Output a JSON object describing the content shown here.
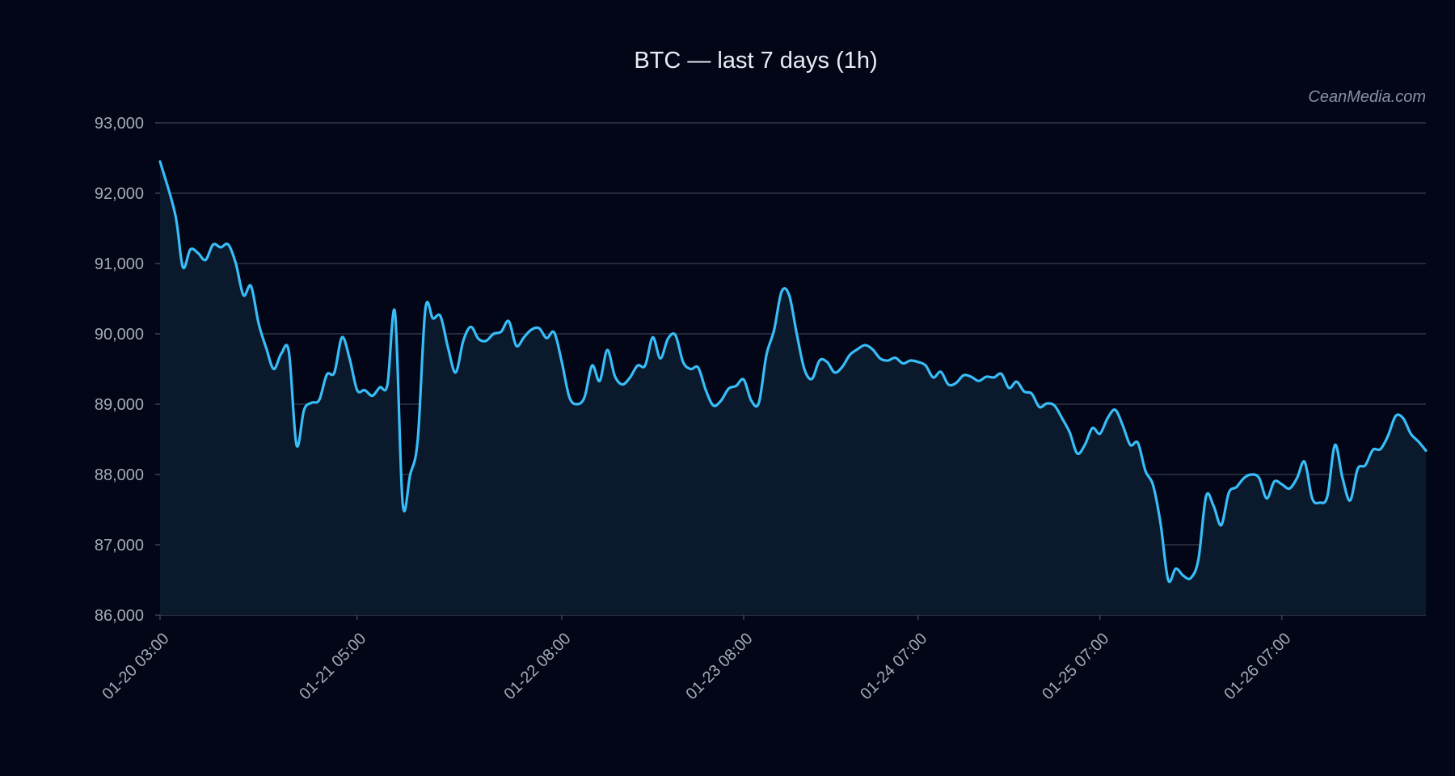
{
  "chart_data": {
    "type": "line",
    "title": "BTC — last 7 days (1h)",
    "watermark": "CeanMedia.com",
    "xlabel": "",
    "ylabel": "",
    "ylim": [
      86000,
      93000
    ],
    "y_ticks": [
      86000,
      87000,
      88000,
      89000,
      90000,
      91000,
      92000,
      93000
    ],
    "y_tick_labels": [
      "86,000",
      "87,000",
      "88,000",
      "89,000",
      "90,000",
      "91,000",
      "92,000",
      "93,000"
    ],
    "x_ticks": [
      {
        "hour": 0,
        "label": "01-20 03:00"
      },
      {
        "hour": 26,
        "label": "01-21 05:00"
      },
      {
        "hour": 53,
        "label": "01-22 08:00"
      },
      {
        "hour": 77,
        "label": "01-23 08:00"
      },
      {
        "hour": 100,
        "label": "01-24 07:00"
      },
      {
        "hour": 124,
        "label": "01-25 07:00"
      },
      {
        "hour": 148,
        "label": "01-26 07:00"
      }
    ],
    "x_unit": "hours since 01-20 03:00",
    "grid": true,
    "legend": "none",
    "colors": {
      "line": "#38bdf8",
      "area": "#0a1a2c",
      "background": "#020617",
      "grid": "#2f3745"
    },
    "series": [
      {
        "points": [
          [
            0,
            92450
          ],
          [
            2,
            91700
          ],
          [
            3,
            90950
          ],
          [
            4,
            91200
          ],
          [
            5,
            91150
          ],
          [
            6,
            91050
          ],
          [
            7,
            91270
          ],
          [
            8,
            91230
          ],
          [
            9,
            91270
          ],
          [
            10,
            91000
          ],
          [
            11,
            90550
          ],
          [
            12,
            90680
          ],
          [
            13,
            90150
          ],
          [
            14,
            89800
          ],
          [
            15,
            89500
          ],
          [
            16,
            89720
          ],
          [
            17,
            89740
          ],
          [
            18,
            88420
          ],
          [
            19,
            88920
          ],
          [
            20,
            89020
          ],
          [
            21,
            89060
          ],
          [
            22,
            89420
          ],
          [
            23,
            89450
          ],
          [
            24,
            89950
          ],
          [
            25,
            89650
          ],
          [
            26,
            89200
          ],
          [
            27,
            89200
          ],
          [
            28,
            89120
          ],
          [
            29,
            89240
          ],
          [
            30,
            89280
          ],
          [
            31,
            90300
          ],
          [
            32,
            87600
          ],
          [
            33,
            88000
          ],
          [
            34,
            88500
          ],
          [
            35,
            90350
          ],
          [
            36,
            90220
          ],
          [
            37,
            90250
          ],
          [
            38,
            89800
          ],
          [
            39,
            89450
          ],
          [
            40,
            89900
          ],
          [
            41,
            90100
          ],
          [
            42,
            89930
          ],
          [
            43,
            89900
          ],
          [
            44,
            90000
          ],
          [
            45,
            90030
          ],
          [
            46,
            90180
          ],
          [
            47,
            89830
          ],
          [
            48,
            89950
          ],
          [
            49,
            90060
          ],
          [
            50,
            90080
          ],
          [
            51,
            89940
          ],
          [
            52,
            90020
          ],
          [
            53,
            89600
          ],
          [
            54,
            89100
          ],
          [
            55,
            89000
          ],
          [
            56,
            89100
          ],
          [
            57,
            89550
          ],
          [
            58,
            89330
          ],
          [
            59,
            89770
          ],
          [
            60,
            89400
          ],
          [
            61,
            89280
          ],
          [
            62,
            89380
          ],
          [
            63,
            89550
          ],
          [
            64,
            89550
          ],
          [
            65,
            89950
          ],
          [
            66,
            89650
          ],
          [
            67,
            89930
          ],
          [
            68,
            89980
          ],
          [
            69,
            89600
          ],
          [
            70,
            89500
          ],
          [
            71,
            89520
          ],
          [
            72,
            89200
          ],
          [
            73,
            88980
          ],
          [
            74,
            89050
          ],
          [
            75,
            89220
          ],
          [
            76,
            89260
          ],
          [
            77,
            89350
          ],
          [
            78,
            89050
          ],
          [
            79,
            89020
          ],
          [
            80,
            89700
          ],
          [
            81,
            90050
          ],
          [
            82,
            90600
          ],
          [
            83,
            90550
          ],
          [
            84,
            90000
          ],
          [
            85,
            89500
          ],
          [
            86,
            89360
          ],
          [
            87,
            89620
          ],
          [
            88,
            89600
          ],
          [
            89,
            89450
          ],
          [
            90,
            89530
          ],
          [
            91,
            89700
          ],
          [
            92,
            89780
          ],
          [
            93,
            89840
          ],
          [
            94,
            89780
          ],
          [
            95,
            89650
          ],
          [
            96,
            89620
          ],
          [
            97,
            89660
          ],
          [
            98,
            89580
          ],
          [
            99,
            89620
          ],
          [
            100,
            89600
          ],
          [
            101,
            89550
          ],
          [
            102,
            89380
          ],
          [
            103,
            89460
          ],
          [
            104,
            89280
          ],
          [
            105,
            89300
          ],
          [
            106,
            89410
          ],
          [
            107,
            89390
          ],
          [
            108,
            89330
          ],
          [
            109,
            89390
          ],
          [
            110,
            89380
          ],
          [
            111,
            89430
          ],
          [
            112,
            89230
          ],
          [
            113,
            89320
          ],
          [
            114,
            89180
          ],
          [
            115,
            89150
          ],
          [
            116,
            88960
          ],
          [
            117,
            89010
          ],
          [
            118,
            88980
          ],
          [
            119,
            88800
          ],
          [
            120,
            88600
          ],
          [
            121,
            88300
          ],
          [
            122,
            88420
          ],
          [
            123,
            88660
          ],
          [
            124,
            88580
          ],
          [
            125,
            88800
          ],
          [
            126,
            88920
          ],
          [
            127,
            88700
          ],
          [
            128,
            88420
          ],
          [
            129,
            88450
          ],
          [
            130,
            88050
          ],
          [
            131,
            87850
          ],
          [
            132,
            87300
          ],
          [
            133,
            86500
          ],
          [
            134,
            86660
          ],
          [
            135,
            86560
          ],
          [
            136,
            86530
          ],
          [
            137,
            86800
          ],
          [
            138,
            87690
          ],
          [
            139,
            87550
          ],
          [
            140,
            87280
          ],
          [
            141,
            87740
          ],
          [
            142,
            87820
          ],
          [
            143,
            87950
          ],
          [
            144,
            88000
          ],
          [
            145,
            87950
          ],
          [
            146,
            87660
          ],
          [
            147,
            87900
          ],
          [
            148,
            87860
          ],
          [
            149,
            87800
          ],
          [
            150,
            87950
          ],
          [
            151,
            88180
          ],
          [
            152,
            87660
          ],
          [
            153,
            87600
          ],
          [
            154,
            87690
          ],
          [
            155,
            88420
          ],
          [
            156,
            87950
          ],
          [
            157,
            87630
          ],
          [
            158,
            88080
          ],
          [
            159,
            88130
          ],
          [
            160,
            88350
          ],
          [
            161,
            88360
          ],
          [
            162,
            88550
          ],
          [
            163,
            88830
          ],
          [
            164,
            88800
          ],
          [
            165,
            88580
          ],
          [
            166,
            88470
          ],
          [
            167,
            88340
          ]
        ]
      }
    ]
  }
}
